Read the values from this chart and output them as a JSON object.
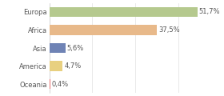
{
  "categories": [
    "Europa",
    "Africa",
    "Asia",
    "America",
    "Oceania"
  ],
  "values": [
    51.7,
    37.5,
    5.6,
    4.7,
    0.4
  ],
  "colors": [
    "#b5c98e",
    "#e8b98a",
    "#6f83b5",
    "#e8d080",
    "#e87070"
  ],
  "labels": [
    "51,7%",
    "37,5%",
    "5,6%",
    "4,7%",
    "0,4%"
  ],
  "background_color": "#ffffff",
  "xlim": [
    0,
    57
  ],
  "figsize": [
    2.8,
    1.2
  ],
  "dpi": 100,
  "bar_height": 0.55,
  "label_fontsize": 6.0,
  "ytick_fontsize": 6.0,
  "grid_color": "#e0e0e0",
  "text_color": "#555555",
  "spine_color": "#cccccc"
}
